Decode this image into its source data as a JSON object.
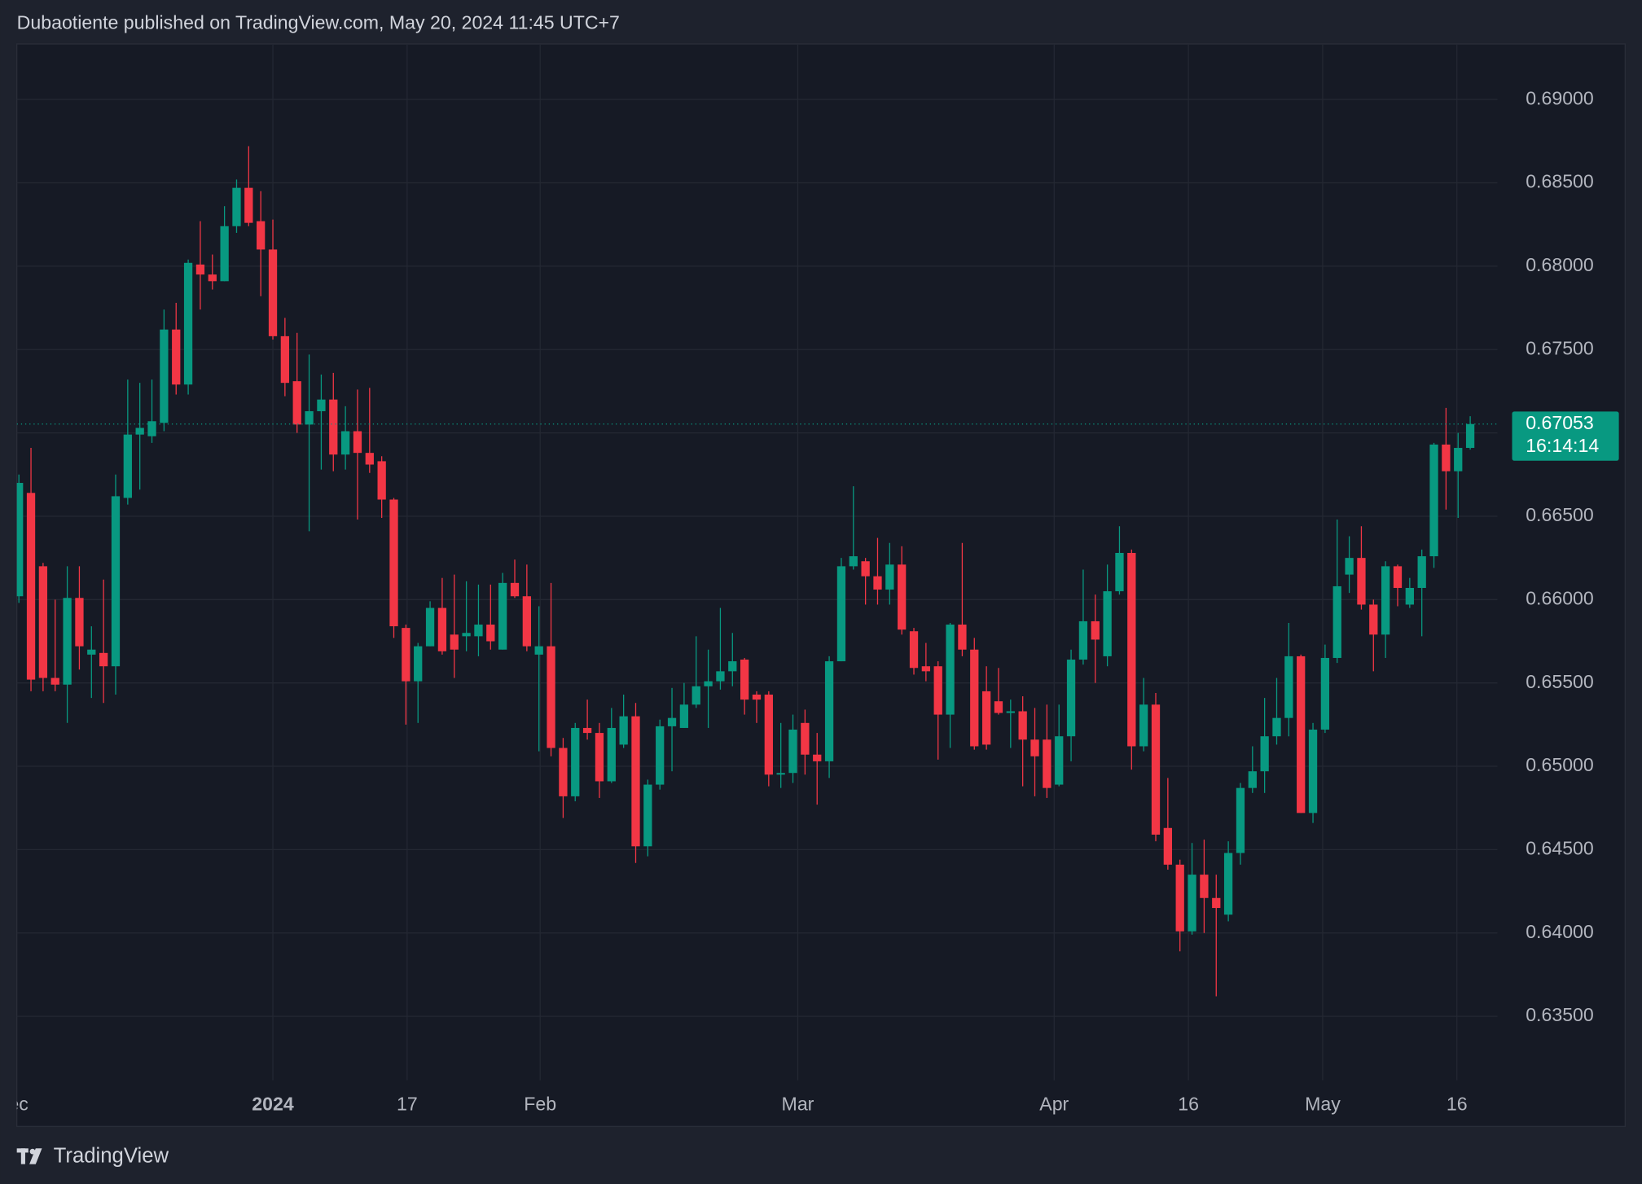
{
  "chart_data": {
    "type": "candlestick",
    "title": "Dubaotiente published on TradingView.com, May 20, 2024 11:45 UTC+7",
    "brand": "TradingView",
    "up_color": "#089981",
    "down_color": "#f23645",
    "grid": true,
    "open": [
      0.6602,
      0.6664,
      0.662,
      0.6553,
      0.6549,
      0.6601,
      0.6567,
      0.6568,
      0.656,
      0.6661,
      0.6699,
      0.6698,
      0.6706,
      0.6762,
      0.6729,
      0.6801,
      0.6795,
      0.6791,
      0.6824,
      0.6847,
      0.6827,
      0.681,
      0.6758,
      0.6731,
      0.6705,
      0.6713,
      0.672,
      0.6687,
      0.6701,
      0.6688,
      0.6683,
      0.666,
      0.6583,
      0.6551,
      0.6572,
      0.6595,
      0.6579,
      0.6578,
      0.6578,
      0.6585,
      0.657,
      0.661,
      0.6602,
      0.6567,
      0.6572,
      0.6511,
      0.6482,
      0.6523,
      0.652,
      0.6491,
      0.6513,
      0.653,
      0.6452,
      0.6489,
      0.6524,
      0.6523,
      0.6537,
      0.6548,
      0.6551,
      0.6557,
      0.6564,
      0.6543,
      0.6543,
      0.6495,
      0.6496,
      0.6526,
      0.6507,
      0.6503,
      0.6563,
      0.662,
      0.6623,
      0.6614,
      0.6606,
      0.6621,
      0.6581,
      0.656,
      0.656,
      0.6531,
      0.6585,
      0.657,
      0.6545,
      0.6539,
      0.6532,
      0.6533,
      0.6516,
      0.6516,
      0.6489,
      0.6518,
      0.6564,
      0.6587,
      0.6566,
      0.6605,
      0.6628,
      0.6512,
      0.6537,
      0.6463,
      0.6441,
      0.6401,
      0.6435,
      0.6421,
      0.6411,
      0.6448,
      0.6487,
      0.6497,
      0.6518,
      0.6529,
      0.6566,
      0.6472,
      0.6522,
      0.6565,
      0.6615,
      0.6625,
      0.6597,
      0.6579,
      0.662,
      0.6597,
      0.6607,
      0.6626,
      0.6693,
      0.6677,
      0.6691
    ],
    "high": [
      0.6675,
      0.6691,
      0.6622,
      0.66,
      0.662,
      0.662,
      0.6584,
      0.6612,
      0.6675,
      0.6732,
      0.673,
      0.6732,
      0.6774,
      0.6778,
      0.6804,
      0.6827,
      0.6807,
      0.6836,
      0.6852,
      0.6872,
      0.6845,
      0.6828,
      0.6769,
      0.676,
      0.6747,
      0.6735,
      0.6736,
      0.6716,
      0.6726,
      0.6727,
      0.6686,
      0.6661,
      0.6585,
      0.6574,
      0.6599,
      0.6613,
      0.6615,
      0.6611,
      0.6609,
      0.6609,
      0.6616,
      0.6624,
      0.6621,
      0.6596,
      0.661,
      0.6517,
      0.6526,
      0.654,
      0.6526,
      0.6535,
      0.6543,
      0.6538,
      0.6492,
      0.6528,
      0.6547,
      0.655,
      0.6578,
      0.657,
      0.6595,
      0.658,
      0.6565,
      0.6545,
      0.6545,
      0.6526,
      0.6531,
      0.6534,
      0.652,
      0.6566,
      0.6625,
      0.6668,
      0.6625,
      0.6637,
      0.6634,
      0.6632,
      0.6583,
      0.6574,
      0.6563,
      0.6586,
      0.6634,
      0.6577,
      0.656,
      0.6559,
      0.654,
      0.6542,
      0.6535,
      0.6537,
      0.6537,
      0.657,
      0.6618,
      0.6603,
      0.6621,
      0.6644,
      0.663,
      0.6553,
      0.6544,
      0.6493,
      0.6444,
      0.6454,
      0.6456,
      0.6435,
      0.6455,
      0.649,
      0.6512,
      0.6541,
      0.6553,
      0.6586,
      0.6567,
      0.6526,
      0.6573,
      0.6648,
      0.6638,
      0.6644,
      0.66,
      0.6623,
      0.6621,
      0.6613,
      0.663,
      0.6694,
      0.6715,
      0.67,
      0.671
    ],
    "low": [
      0.6598,
      0.6545,
      0.6545,
      0.6545,
      0.6526,
      0.6558,
      0.6541,
      0.6538,
      0.6543,
      0.6657,
      0.6666,
      0.6694,
      0.6701,
      0.6723,
      0.6723,
      0.6774,
      0.6786,
      0.6791,
      0.682,
      0.6824,
      0.6782,
      0.6756,
      0.6722,
      0.67,
      0.6641,
      0.6678,
      0.6677,
      0.6678,
      0.6648,
      0.6676,
      0.6649,
      0.6577,
      0.6525,
      0.6526,
      0.6572,
      0.6567,
      0.6553,
      0.6569,
      0.6566,
      0.657,
      0.657,
      0.6601,
      0.6569,
      0.6509,
      0.6506,
      0.6469,
      0.6479,
      0.6516,
      0.6481,
      0.649,
      0.6511,
      0.6442,
      0.6446,
      0.6486,
      0.6497,
      0.6523,
      0.6535,
      0.6523,
      0.6546,
      0.6548,
      0.6531,
      0.6526,
      0.6488,
      0.6487,
      0.649,
      0.6495,
      0.6477,
      0.6493,
      0.6563,
      0.6618,
      0.6597,
      0.6597,
      0.6597,
      0.6579,
      0.6555,
      0.6551,
      0.6504,
      0.6511,
      0.6566,
      0.651,
      0.651,
      0.6531,
      0.6511,
      0.6488,
      0.6482,
      0.6481,
      0.6488,
      0.6503,
      0.6561,
      0.655,
      0.656,
      0.6603,
      0.6498,
      0.6509,
      0.6455,
      0.6438,
      0.6389,
      0.6399,
      0.64,
      0.6362,
      0.6407,
      0.6441,
      0.6484,
      0.6484,
      0.6513,
      0.6518,
      0.6472,
      0.6466,
      0.652,
      0.6562,
      0.6604,
      0.6594,
      0.6557,
      0.6565,
      0.6596,
      0.6595,
      0.6578,
      0.6619,
      0.6654,
      0.6649,
      0.669
    ],
    "close": [
      0.667,
      0.6552,
      0.6553,
      0.6549,
      0.6601,
      0.6572,
      0.657,
      0.656,
      0.6662,
      0.6699,
      0.6703,
      0.6707,
      0.6762,
      0.6729,
      0.6802,
      0.6795,
      0.6791,
      0.6824,
      0.6847,
      0.6826,
      0.681,
      0.6758,
      0.673,
      0.6705,
      0.6713,
      0.672,
      0.6687,
      0.6701,
      0.6688,
      0.6681,
      0.666,
      0.6584,
      0.6551,
      0.6572,
      0.6595,
      0.6569,
      0.657,
      0.658,
      0.6585,
      0.6575,
      0.661,
      0.6602,
      0.6572,
      0.6572,
      0.6511,
      0.6482,
      0.6523,
      0.652,
      0.6491,
      0.6523,
      0.653,
      0.6452,
      0.6489,
      0.6524,
      0.6529,
      0.6537,
      0.6548,
      0.6551,
      0.6557,
      0.6563,
      0.654,
      0.654,
      0.6495,
      0.6496,
      0.6522,
      0.6507,
      0.6503,
      0.6563,
      0.662,
      0.6626,
      0.6614,
      0.6606,
      0.6621,
      0.6582,
      0.6559,
      0.6557,
      0.6531,
      0.6585,
      0.657,
      0.6512,
      0.6513,
      0.6532,
      0.6533,
      0.6516,
      0.6506,
      0.6487,
      0.6518,
      0.6564,
      0.6587,
      0.6576,
      0.6605,
      0.6628,
      0.6512,
      0.6537,
      0.6459,
      0.6441,
      0.6401,
      0.6435,
      0.6421,
      0.6415,
      0.6448,
      0.6487,
      0.6497,
      0.6518,
      0.6529,
      0.6566,
      0.6472,
      0.6522,
      0.6565,
      0.6608,
      0.6625,
      0.6597,
      0.6579,
      0.662,
      0.6607,
      0.6607,
      0.6626,
      0.6693,
      0.6677,
      0.6691,
      0.67053
    ],
    "last_price": 0.67053,
    "countdown": "16:14:14",
    "xlim": [
      -0.17,
      122.25
    ],
    "xticks": [
      {
        "value": -0.6,
        "label": "Dec"
      },
      {
        "value": 21,
        "label": "2024"
      },
      {
        "value": 32.1,
        "label": "17"
      },
      {
        "value": 43.1,
        "label": "Feb"
      },
      {
        "value": 64.4,
        "label": "Mar"
      },
      {
        "value": 85.6,
        "label": "Apr"
      },
      {
        "value": 96.7,
        "label": "16"
      },
      {
        "value": 107.8,
        "label": "May"
      },
      {
        "value": 118.9,
        "label": "16"
      }
    ],
    "ylim": [
      0.63116,
      0.69333
    ],
    "yticks": [
      {
        "value": 0.635,
        "label": "0.63500"
      },
      {
        "value": 0.64,
        "label": "0.64000"
      },
      {
        "value": 0.645,
        "label": "0.64500"
      },
      {
        "value": 0.65,
        "label": "0.65000"
      },
      {
        "value": 0.655,
        "label": "0.65500"
      },
      {
        "value": 0.66,
        "label": "0.66000"
      },
      {
        "value": 0.665,
        "label": "0.66500"
      },
      {
        "value": 0.67,
        "label": "0.67000"
      },
      {
        "value": 0.675,
        "label": "0.67500"
      },
      {
        "value": 0.68,
        "label": "0.68000"
      },
      {
        "value": 0.685,
        "label": "0.68500"
      },
      {
        "value": 0.69,
        "label": "0.69000"
      }
    ]
  }
}
